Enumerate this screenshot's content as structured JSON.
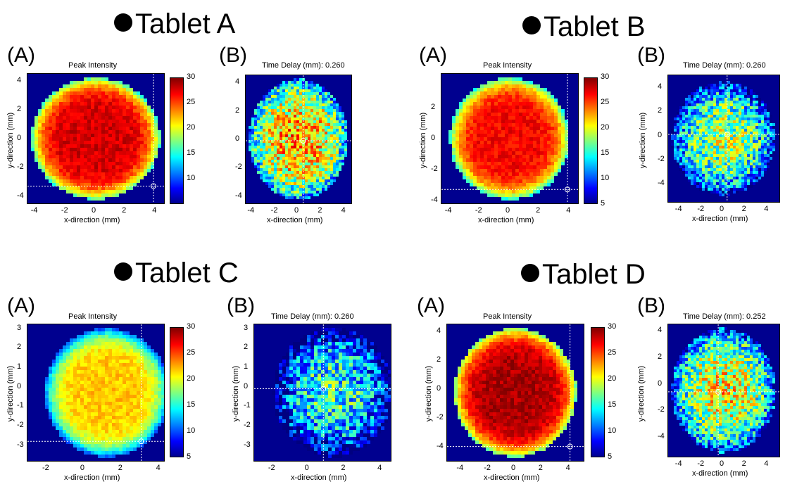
{
  "chart_data": [
    {
      "type": "heatmap",
      "tablet": "Tablet A",
      "panel": "(A)",
      "title": "Peak Intensity",
      "xlabel": "x-direction (mm)",
      "ylabel": "y-direction (mm)",
      "xlim": [
        -4.5,
        4.5
      ],
      "ylim": [
        -4.5,
        4.5
      ],
      "xticks": [
        -4,
        -2,
        0,
        2,
        4
      ],
      "yticks": [
        4,
        2,
        0,
        -2,
        -4
      ],
      "colorbar": {
        "min": 5,
        "max": 30,
        "ticks": [
          30,
          25,
          20,
          15,
          10
        ]
      },
      "crosshair": {
        "x": 3.8,
        "y": -3.3
      },
      "mean_level": 28
    },
    {
      "type": "heatmap",
      "tablet": "Tablet A",
      "panel": "(B)",
      "title": "Time Delay (mm): 0.260",
      "xlabel": "x-direction (mm)",
      "ylabel": "",
      "xlim": [
        -4.5,
        4.5
      ],
      "ylim": [
        -4.5,
        4.5
      ],
      "xticks": [
        -4,
        -2,
        0,
        2,
        4
      ],
      "yticks": [
        4,
        2,
        0,
        -2,
        -4
      ],
      "crosshair": {
        "x": 0.4,
        "y": -0.1
      },
      "mean_level": 19
    },
    {
      "type": "heatmap",
      "tablet": "Tablet B",
      "panel": "(A)",
      "title": "Peak Intensity",
      "xlabel": "x-direction (mm)",
      "ylabel": "y-direction (mm)",
      "xlim": [
        -4.5,
        4.5
      ],
      "ylim": [
        -4.2,
        4.2
      ],
      "xticks": [
        -4,
        -2,
        0,
        2,
        4
      ],
      "yticks": [
        2,
        0,
        -2,
        -4
      ],
      "colorbar": {
        "min": 5,
        "max": 30,
        "ticks": [
          30,
          25,
          20,
          15,
          10,
          5
        ]
      },
      "crosshair": {
        "x": 3.8,
        "y": -3.3
      },
      "mean_level": 27
    },
    {
      "type": "heatmap",
      "tablet": "Tablet B",
      "panel": "(B)",
      "title": "Time Delay (mm): 0.260",
      "xlabel": "x-direction (mm)",
      "ylabel": "y-direction (mm)",
      "xlim": [
        -5,
        5
      ],
      "ylim": [
        -5.5,
        5
      ],
      "xticks": [
        -4,
        -2,
        0,
        2,
        4
      ],
      "yticks": [
        4,
        2,
        0,
        -2,
        -4
      ],
      "crosshair": {
        "x": 0.3,
        "y": 0.1
      },
      "mean_level": 15
    },
    {
      "type": "heatmap",
      "tablet": "Tablet C",
      "panel": "(A)",
      "title": "Peak Intensity",
      "xlabel": "x-direction (mm)",
      "ylabel": "y-direction (mm)",
      "xlim": [
        -3,
        4.2
      ],
      "ylim": [
        -3.8,
        3.2
      ],
      "xticks": [
        -2,
        0,
        2,
        4
      ],
      "yticks": [
        3,
        2,
        1,
        0,
        -1,
        -2,
        -3
      ],
      "colorbar": {
        "min": 5,
        "max": 30,
        "ticks": [
          30,
          25,
          20,
          15,
          10,
          5
        ]
      },
      "crosshair": {
        "x": 3.0,
        "y": -2.8
      },
      "mean_level": 22
    },
    {
      "type": "heatmap",
      "tablet": "Tablet C",
      "panel": "(B)",
      "title": "Time Delay (mm): 0.260",
      "xlabel": "x-direction (mm)",
      "ylabel": "y-direction (mm)",
      "xlim": [
        -3,
        4.5
      ],
      "ylim": [
        -3.8,
        3.2
      ],
      "xticks": [
        -2,
        0,
        2,
        4
      ],
      "yticks": [
        3,
        2,
        1,
        0,
        -1,
        -2,
        -3
      ],
      "crosshair": {
        "x": 0.8,
        "y": -0.1
      },
      "mean_level": 12
    },
    {
      "type": "heatmap",
      "tablet": "Tablet  D",
      "panel": "(A)",
      "title": "Peak Intensity",
      "xlabel": "x-direction (mm)",
      "ylabel": "y-direction (mm)",
      "xlim": [
        -5,
        5
      ],
      "ylim": [
        -5,
        4.5
      ],
      "xticks": [
        -4,
        -2,
        0,
        2,
        4
      ],
      "yticks": [
        4,
        2,
        0,
        -2,
        -4
      ],
      "colorbar": {
        "min": 5,
        "max": 30,
        "ticks": [
          30,
          25,
          20,
          15,
          10,
          5
        ]
      },
      "crosshair": {
        "x": 4.0,
        "y": -4.0
      },
      "mean_level": 29
    },
    {
      "type": "heatmap",
      "tablet": "Tablet  D",
      "panel": "(B)",
      "title": "Time Delay (mm): 0.252",
      "xlabel": "x-direction (mm)",
      "ylabel": "y-direction (mm)",
      "xlim": [
        -5,
        5
      ],
      "ylim": [
        -5.5,
        4.5
      ],
      "xticks": [
        -4,
        -2,
        0,
        2,
        4
      ],
      "yticks": [
        4,
        2,
        0,
        -2,
        -4
      ],
      "crosshair": {
        "x": -0.5,
        "y": -0.6
      },
      "mean_level": 17
    }
  ]
}
